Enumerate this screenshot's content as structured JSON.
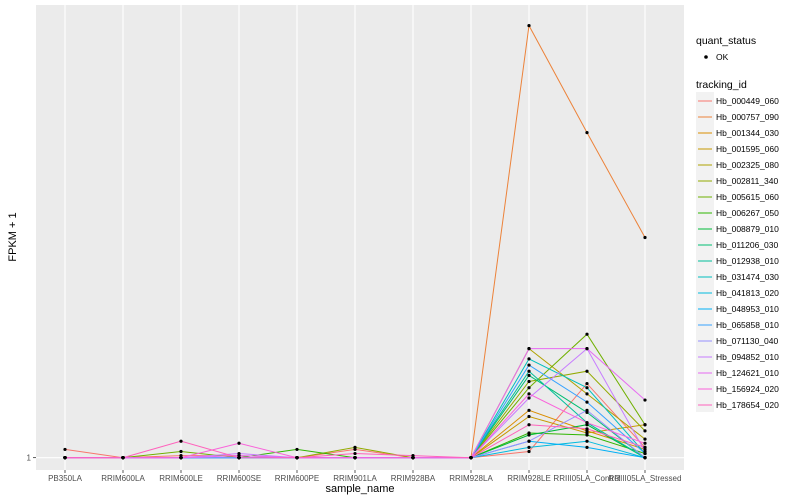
{
  "chart_data": {
    "type": "line",
    "title": "",
    "xlabel": "sample_name",
    "ylabel": "FPKM + 1",
    "y_tick_labels": [
      "1"
    ],
    "ylim": [
      0.94,
      3.2
    ],
    "grid": true,
    "legend_position": "right",
    "categories": [
      "PB350LA",
      "RRIM600LA",
      "RRIM600LE",
      "RRIM600SE",
      "RRIM600PE",
      "RRIM901LA",
      "RRIM928BA",
      "RRIM928LA",
      "RRIM928LE",
      "RRIII05LA_Control",
      "RRIII05LA_Stressed"
    ],
    "quant_status": {
      "title": "quant_status",
      "entries": [
        "OK"
      ]
    },
    "series_legend_title": "tracking_id",
    "series": [
      {
        "name": "Hb_000449_060",
        "color": "#F8766D",
        "values": [
          1.04,
          1.0,
          1.01,
          1.01,
          1.0,
          1.04,
          1.0,
          1.0,
          1.03,
          1.36,
          1.05
        ]
      },
      {
        "name": "Hb_000757_090",
        "color": "#EC8239",
        "values": [
          1.0,
          1.0,
          1.0,
          1.0,
          1.0,
          1.0,
          1.0,
          1.0,
          3.1,
          2.58,
          2.07
        ]
      },
      {
        "name": "Hb_001344_030",
        "color": "#DB8E00",
        "values": [
          1.0,
          1.0,
          1.0,
          1.0,
          1.0,
          1.0,
          1.0,
          1.0,
          1.23,
          1.13,
          1.04
        ]
      },
      {
        "name": "Hb_001595_060",
        "color": "#C79800",
        "values": [
          1.0,
          1.0,
          1.0,
          1.0,
          1.0,
          1.0,
          1.0,
          1.0,
          1.2,
          1.12,
          1.16
        ]
      },
      {
        "name": "Hb_002325_080",
        "color": "#AFA100",
        "values": [
          1.0,
          1.0,
          1.0,
          1.0,
          1.0,
          1.0,
          1.0,
          1.0,
          1.53,
          1.31,
          1.09
        ]
      },
      {
        "name": "Hb_002811_340",
        "color": "#93AA00",
        "values": [
          1.0,
          1.0,
          1.0,
          1.0,
          1.0,
          1.05,
          1.0,
          1.0,
          1.37,
          1.42,
          1.13
        ]
      },
      {
        "name": "Hb_005615_060",
        "color": "#6FB000",
        "values": [
          1.0,
          1.0,
          1.03,
          1.0,
          1.0,
          1.0,
          1.0,
          1.0,
          1.34,
          1.6,
          1.16
        ]
      },
      {
        "name": "Hb_006267_050",
        "color": "#2FB600",
        "values": [
          1.0,
          1.0,
          1.0,
          1.0,
          1.04,
          1.0,
          1.0,
          1.0,
          1.12,
          1.11,
          1.02
        ]
      },
      {
        "name": "Hb_008879_010",
        "color": "#00BA38",
        "values": [
          1.0,
          1.0,
          1.0,
          1.0,
          1.0,
          1.0,
          1.0,
          1.0,
          1.11,
          1.16,
          1.0
        ]
      },
      {
        "name": "Hb_011206_030",
        "color": "#00BD73",
        "values": [
          1.0,
          1.0,
          1.0,
          1.0,
          1.0,
          1.0,
          1.0,
          1.0,
          1.4,
          1.22,
          1.0
        ]
      },
      {
        "name": "Hb_012938_010",
        "color": "#00BF9A",
        "values": [
          1.0,
          1.0,
          1.0,
          1.0,
          1.0,
          1.0,
          1.0,
          1.0,
          1.42,
          1.17,
          1.0
        ]
      },
      {
        "name": "Hb_031474_030",
        "color": "#00BFBD",
        "values": [
          1.0,
          1.0,
          1.0,
          1.0,
          1.0,
          1.0,
          1.0,
          1.0,
          1.48,
          1.34,
          1.02
        ]
      },
      {
        "name": "Hb_041813_020",
        "color": "#00BADE",
        "values": [
          1.0,
          1.0,
          1.0,
          1.0,
          1.0,
          1.0,
          1.0,
          1.0,
          1.05,
          1.08,
          1.0
        ]
      },
      {
        "name": "Hb_048953_010",
        "color": "#00B0F6",
        "values": [
          1.0,
          1.0,
          1.0,
          1.0,
          1.0,
          1.0,
          1.0,
          1.0,
          1.08,
          1.05,
          1.0
        ]
      },
      {
        "name": "Hb_065858_010",
        "color": "#35A2FF",
        "values": [
          1.0,
          1.0,
          1.0,
          1.0,
          1.0,
          1.0,
          1.0,
          1.0,
          1.45,
          1.27,
          1.02
        ]
      },
      {
        "name": "Hb_071130_040",
        "color": "#9590FF",
        "values": [
          1.0,
          1.0,
          1.0,
          1.0,
          1.0,
          1.0,
          1.0,
          1.0,
          1.08,
          1.23,
          1.0
        ]
      },
      {
        "name": "Hb_094852_010",
        "color": "#C77CFF",
        "values": [
          1.0,
          1.0,
          1.0,
          1.02,
          1.0,
          1.0,
          1.0,
          1.0,
          1.29,
          1.53,
          1.03
        ]
      },
      {
        "name": "Hb_124621_010",
        "color": "#E76BF3",
        "values": [
          1.0,
          1.0,
          1.0,
          1.01,
          1.0,
          1.0,
          1.0,
          1.0,
          1.53,
          1.53,
          1.28
        ]
      },
      {
        "name": "Hb_156924_020",
        "color": "#FA62DB",
        "values": [
          1.0,
          1.0,
          1.0,
          1.07,
          1.0,
          1.0,
          1.0,
          1.0,
          1.31,
          1.17,
          1.07
        ]
      },
      {
        "name": "Hb_178654_020",
        "color": "#FF62BC",
        "values": [
          1.0,
          1.0,
          1.08,
          1.0,
          1.0,
          1.02,
          1.01,
          1.0,
          1.16,
          1.14,
          1.05
        ]
      }
    ]
  }
}
